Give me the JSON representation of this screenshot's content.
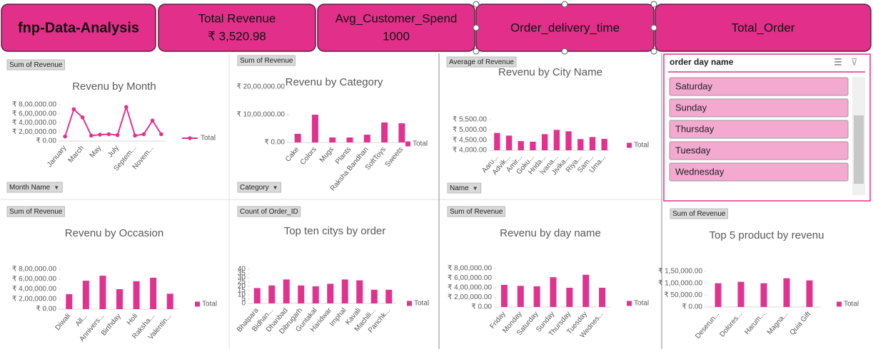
{
  "header": {
    "title": "fnp-Data-Analysis"
  },
  "cards": [
    {
      "title": "Total Revenue",
      "value": "₹ 3,520.98"
    },
    {
      "title": "Avg_Customer_Spend",
      "value": "1000"
    },
    {
      "title": "Order_delivery_time"
    },
    {
      "title": "Total_Order"
    }
  ],
  "slicer": {
    "title": "order day name",
    "items": [
      "Saturday",
      "Sunday",
      "Thursday",
      "Tuesday",
      "Wednesday"
    ]
  },
  "chart_data": [
    {
      "type": "line",
      "title": "Revenu by Month",
      "field_label": "Sum of Revenue",
      "filter_label": "Month Name",
      "categories": [
        "January",
        null,
        "March",
        null,
        "May",
        null,
        "July",
        null,
        "Septem...",
        null,
        "Novem...",
        null
      ],
      "series": [
        {
          "name": "Total",
          "color": "#e0338f",
          "values": [
            100000,
            700000,
            520000,
            120000,
            140000,
            150000,
            130000,
            750000,
            120000,
            150000,
            450000,
            150000
          ]
        }
      ],
      "ylim": [
        0,
        800000
      ],
      "yticks": [
        {
          "value": 0,
          "label": "₹ 0.00"
        },
        {
          "value": 200000,
          "label": "₹ 2,00,000.00"
        },
        {
          "value": 400000,
          "label": "₹ 4,00,000.00"
        },
        {
          "value": 600000,
          "label": "₹ 6,00,000.00"
        },
        {
          "value": 800000,
          "label": "₹ 8,00,000.00"
        }
      ]
    },
    {
      "type": "bar",
      "title": "Revenu by Category",
      "field_label": "Sum of Revenue",
      "filter_label": "Category",
      "categories": [
        "Cake",
        "Colors",
        "Mugs",
        "Plants",
        "Raksha Bandhan",
        "SoftToys",
        "Sweets"
      ],
      "series": [
        {
          "name": "Total",
          "color": "#e0338f",
          "values": [
            310000,
            1000000,
            180000,
            180000,
            280000,
            720000,
            690000
          ]
        }
      ],
      "ylim": [
        0,
        2000000
      ],
      "yticks": [
        {
          "value": 0,
          "label": "₹ 0.00"
        },
        {
          "value": 1000000,
          "label": "₹ 10,00,000.00"
        },
        {
          "value": 2000000,
          "label": "₹ 20,00,000.00"
        }
      ]
    },
    {
      "type": "bar",
      "title": "Revenu by City Name",
      "field_label": "Average of Revenue",
      "filter_label": "Name",
      "categories": [
        "Aaru...",
        "Advik...",
        "Amir...",
        "Goku...",
        "Hrida...",
        "Ivana...",
        "Jivika...",
        "Riya...",
        "Sam...",
        "Uma..."
      ],
      "series": [
        {
          "name": "Total",
          "color": "#e0338f",
          "values": [
            4850,
            4720,
            4450,
            4420,
            4790,
            5000,
            4930,
            4550,
            4650,
            4560
          ]
        }
      ],
      "ylim": [
        4000,
        5500
      ],
      "yticks": [
        {
          "value": 4000,
          "label": "₹ 4,000.00"
        },
        {
          "value": 4500,
          "label": "₹ 4,500.00"
        },
        {
          "value": 5000,
          "label": "₹ 5,000.00"
        },
        {
          "value": 5500,
          "label": "₹ 5,500.00"
        }
      ]
    },
    {
      "type": "bar",
      "title": "Revenu by Occasion",
      "field_label": "Sum of Revenue",
      "categories": [
        "Diwali",
        "All...",
        "Annivers...",
        "Birthday",
        "Holi",
        "Raksha...",
        "Valentin..."
      ],
      "series": [
        {
          "name": "Total",
          "color": "#e0338f",
          "values": [
            300000,
            570000,
            670000,
            400000,
            560000,
            630000,
            310000
          ]
        }
      ],
      "ylim": [
        0,
        800000
      ],
      "yticks": [
        {
          "value": 0,
          "label": "₹ 0.00"
        },
        {
          "value": 200000,
          "label": "₹ 2,00,000.00"
        },
        {
          "value": 400000,
          "label": "₹ 4,00,000.00"
        },
        {
          "value": 600000,
          "label": "₹ 6,00,000.00"
        },
        {
          "value": 800000,
          "label": "₹ 8,00,000.00"
        }
      ]
    },
    {
      "type": "bar",
      "title": "Top ten citys by order",
      "field_label": "Count of Order_ID",
      "categories": [
        "Bhatpara",
        "Bidhan...",
        "Dhanbad",
        "Dibrugarh",
        "Guntakal",
        "Haridwar",
        "Imphal",
        "Kavali",
        "Machili...",
        "Panchk..."
      ],
      "series": [
        {
          "name": "Total",
          "color": "#e0338f",
          "values": [
            18,
            21,
            28,
            21,
            20,
            23,
            28,
            27,
            16,
            16
          ]
        }
      ],
      "ylim": [
        0,
        40
      ],
      "yticks": [
        0,
        5,
        10,
        15,
        20,
        25,
        30,
        35,
        40
      ]
    },
    {
      "type": "bar",
      "title": "Revenu by day name",
      "field_label": "Sum of Revenue",
      "categories": [
        "Friday",
        "Monday",
        "Saturday",
        "Sunday",
        "Thursday",
        "Tuesday",
        "Wednes..."
      ],
      "series": [
        {
          "name": "Total",
          "color": "#e0338f",
          "values": [
            460000,
            440000,
            430000,
            620000,
            400000,
            670000,
            400000
          ]
        }
      ],
      "ylim": [
        0,
        800000
      ],
      "yticks": [
        {
          "value": 0,
          "label": "₹ 0.00"
        },
        {
          "value": 200000,
          "label": "₹ 2,00,000.00"
        },
        {
          "value": 400000,
          "label": "₹ 4,00,000.00"
        },
        {
          "value": 600000,
          "label": "₹ 6,00,000.00"
        },
        {
          "value": 800000,
          "label": "₹ 8,00,000.00"
        }
      ]
    },
    {
      "type": "bar",
      "title": "Top 5 product by revenu",
      "field_label": "Sum of Revenue",
      "categories": [
        "Deserun...",
        "Dolores...",
        "Harum...",
        "Magna...",
        "Quia Gift"
      ],
      "series": [
        {
          "name": "Total",
          "color": "#e0338f",
          "values": [
            100000,
            106000,
            100000,
            121000,
            112000
          ]
        }
      ],
      "ylim": [
        0,
        150000
      ],
      "yticks": [
        {
          "value": 0,
          "label": "₹ 0.00"
        },
        {
          "value": 50000,
          "label": "₹ 50,000.00"
        },
        {
          "value": 100000,
          "label": "₹ 1,00,000.00"
        },
        {
          "value": 150000,
          "label": "₹ 1,50,000.00"
        }
      ]
    }
  ]
}
